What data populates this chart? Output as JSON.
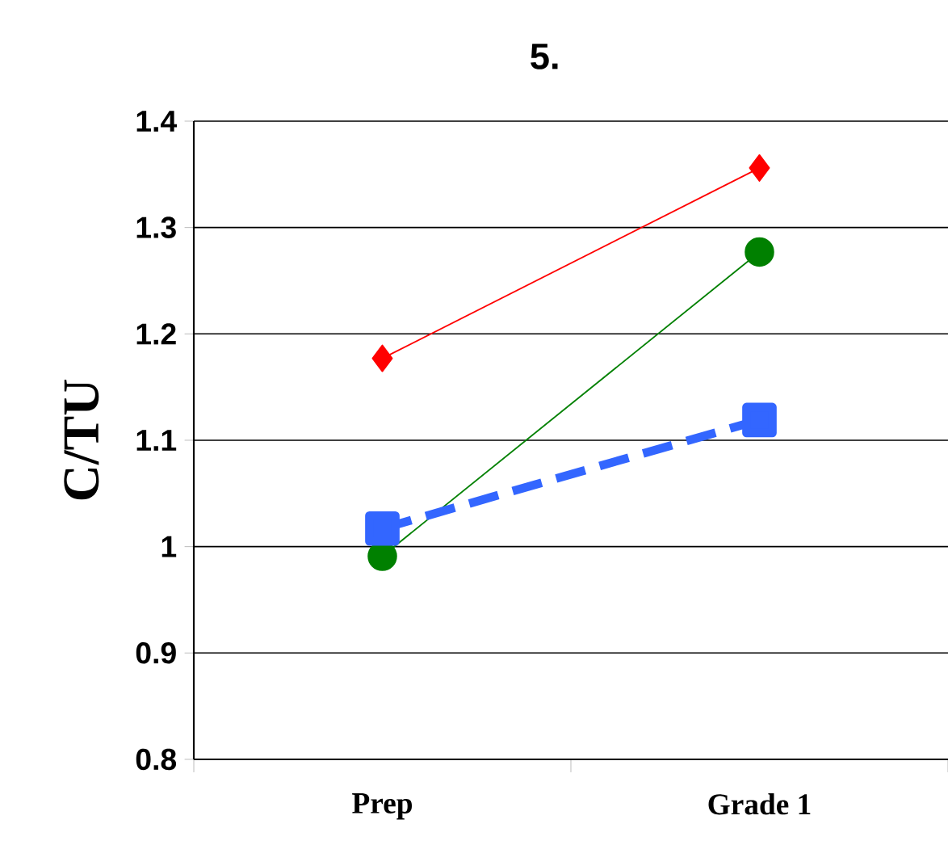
{
  "chart_data": {
    "type": "line",
    "title": "5.",
    "ylabel": "C/TU",
    "categories": [
      "Prep",
      "Grade 1"
    ],
    "series": [
      {
        "color": "#ff0000",
        "values": [
          1.177,
          1.356
        ],
        "marker": "diamond",
        "line_style": "solid"
      },
      {
        "color": "#008000",
        "values": [
          0.991,
          1.277
        ],
        "marker": "circle",
        "line_style": "solid"
      },
      {
        "color": "#3366ff",
        "values": [
          1.017,
          1.119
        ],
        "marker": "square",
        "line_style": "dashed"
      }
    ],
    "ylim": [
      0.8,
      1.4
    ],
    "yticks": [
      0.8,
      0.9,
      1,
      1.1,
      1.2,
      1.3,
      1.4
    ],
    "grid": "y"
  }
}
